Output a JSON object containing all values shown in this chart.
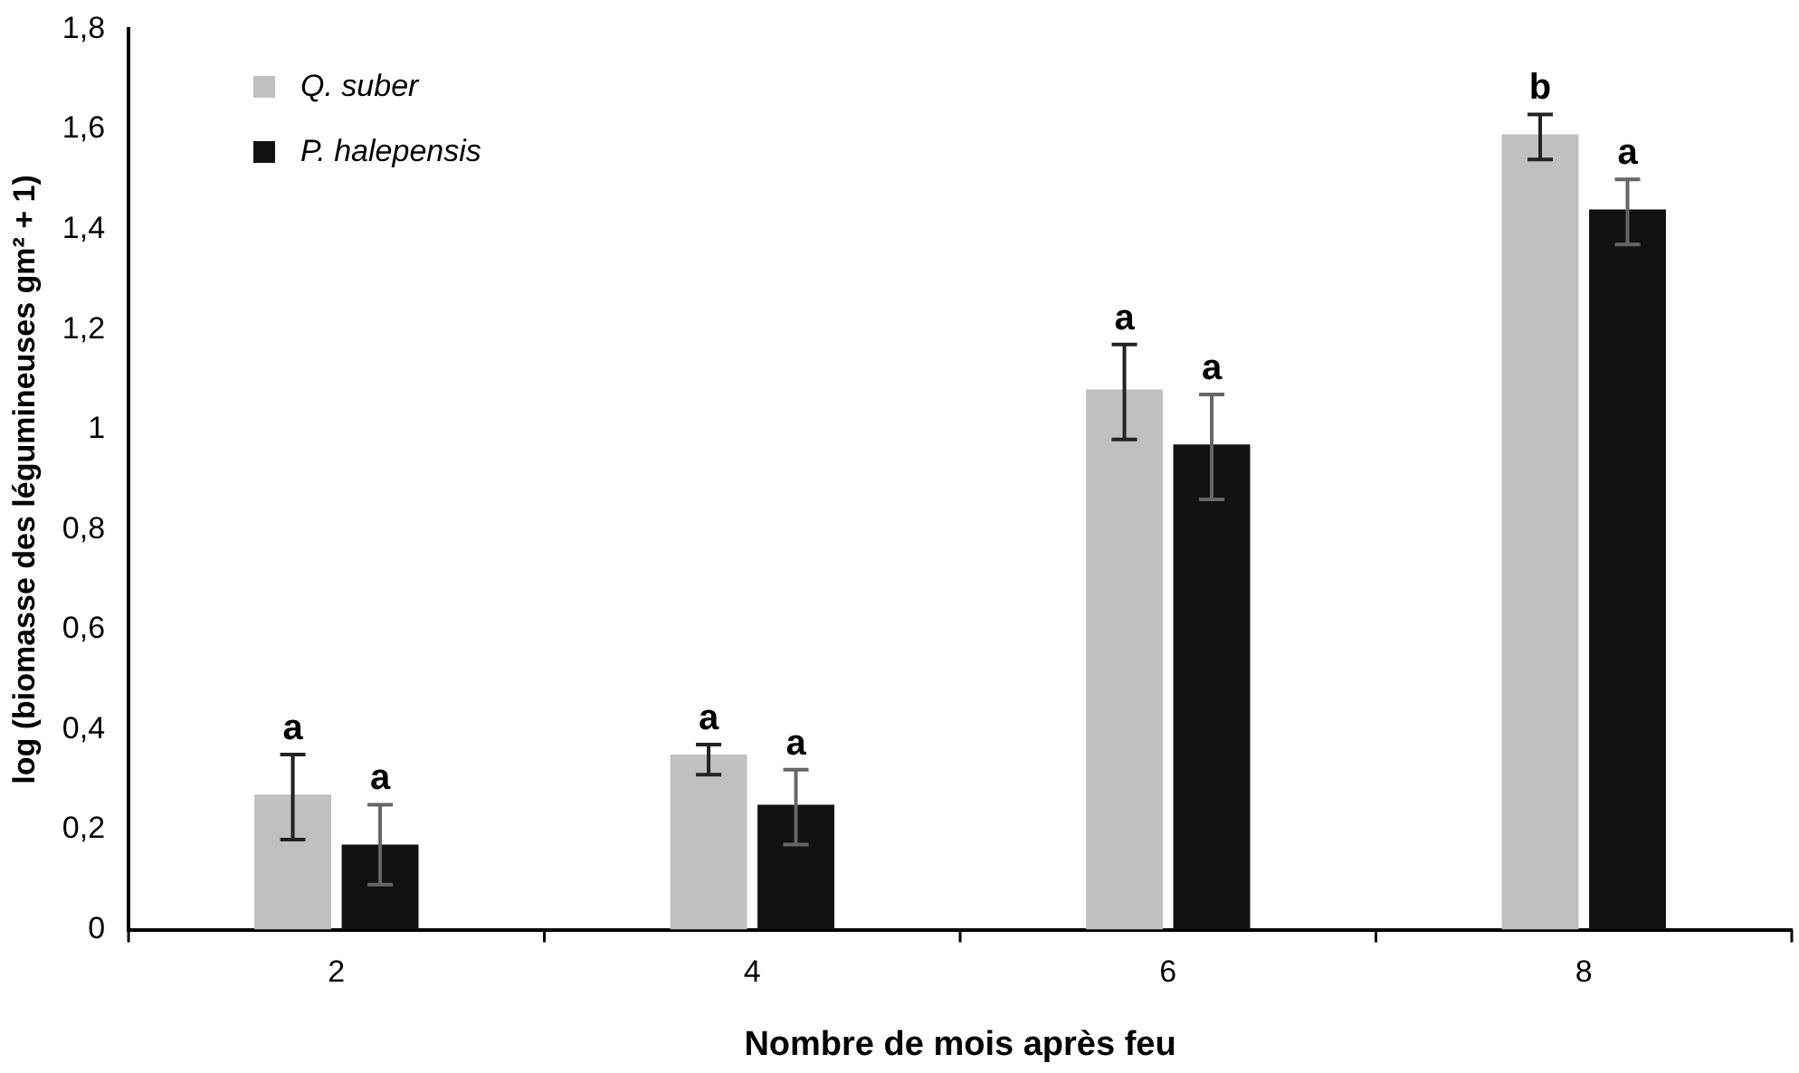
{
  "chart_data": {
    "type": "bar",
    "xlabel": "Nombre de mois après feu",
    "ylabel": "log (biomasse des légumineuses gm² + 1)",
    "categories": [
      "2",
      "4",
      "6",
      "8"
    ],
    "series": [
      {
        "name": "Q. suber",
        "color": "#c0c0c0",
        "values": [
          0.27,
          0.35,
          1.08,
          1.59
        ],
        "errors": [
          [
            0.18,
            0.35
          ],
          [
            0.31,
            0.37
          ],
          [
            0.98,
            1.17
          ],
          [
            1.54,
            1.63
          ]
        ],
        "value_labels": [
          "a",
          "a",
          "a",
          "b"
        ]
      },
      {
        "name": "P. halepensis",
        "color": "#111111",
        "values": [
          0.17,
          0.25,
          0.97,
          1.44
        ],
        "errors": [
          [
            0.09,
            0.25
          ],
          [
            0.17,
            0.32
          ],
          [
            0.86,
            1.07
          ],
          [
            1.37,
            1.5
          ]
        ],
        "value_labels": [
          "a",
          "a",
          "a",
          "a"
        ]
      }
    ],
    "ylim": [
      0,
      1.8
    ],
    "yticks": [
      0,
      {
        "value": 0.2,
        "label": "0,2"
      },
      {
        "value": 0.4,
        "label": "0,4"
      },
      {
        "value": 0.6,
        "label": "0,6"
      },
      {
        "value": 0.8,
        "label": "0,8"
      },
      1,
      {
        "value": 1.2,
        "label": "1,2"
      },
      {
        "value": 1.4,
        "label": "1,4"
      },
      {
        "value": 1.6,
        "label": "1,6"
      },
      {
        "value": 1.8,
        "label": "1,8"
      }
    ],
    "grid": false,
    "legend": "top left"
  }
}
